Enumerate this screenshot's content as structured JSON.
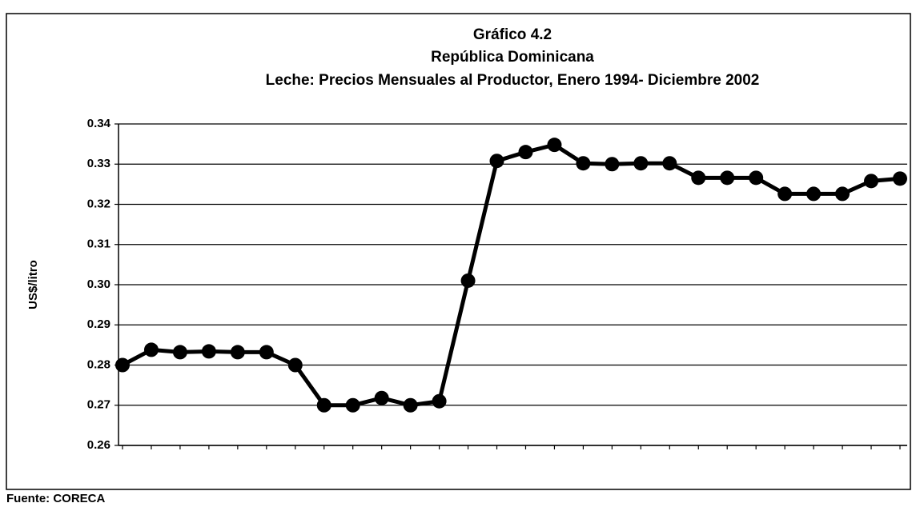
{
  "chart_data": {
    "type": "line",
    "title": [
      "Gráfico 4.2",
      "República Dominicana",
      "Leche: Precios Mensuales al Productor, Enero 1994- Diciembre 2002"
    ],
    "ylabel": "US$/litro",
    "source": "Fuente: CORECA",
    "categories": [
      null,
      null,
      null,
      null,
      null,
      null,
      null,
      null,
      null,
      null,
      null,
      null,
      null,
      null,
      null,
      null,
      null,
      null,
      null,
      null,
      null,
      null,
      null,
      null,
      null,
      null,
      null,
      null
    ],
    "series": [
      {
        "name": "Leche",
        "color": "#000000",
        "values": [
          0.28,
          0.2838,
          0.2832,
          0.2834,
          0.2832,
          0.2832,
          0.28,
          0.27,
          0.27,
          0.2718,
          0.27,
          0.271,
          0.301,
          0.3308,
          0.333,
          0.3348,
          0.3302,
          0.33,
          0.3302,
          0.3302,
          0.3266,
          0.3266,
          0.3266,
          0.3226,
          0.3226,
          0.3226,
          0.3258,
          0.3264
        ]
      }
    ],
    "ylim": [
      0.26,
      0.34
    ],
    "yticks": [
      0.26,
      0.27,
      0.28,
      0.29,
      {
        "value": 0.3,
        "label": "0.30"
      },
      0.31,
      0.32,
      0.33,
      0.34
    ],
    "grid": true
  }
}
